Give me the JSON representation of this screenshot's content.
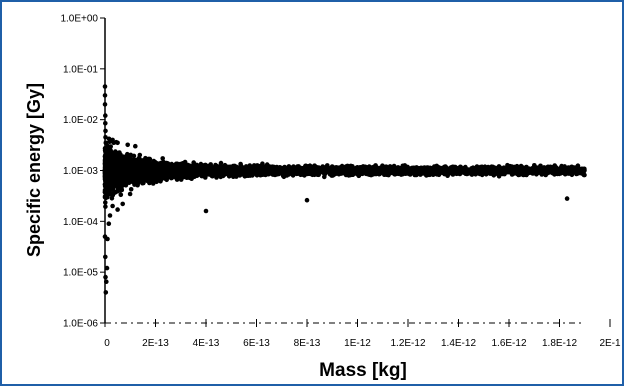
{
  "chart_data": {
    "type": "scatter",
    "title": "",
    "xlabel": "Mass [kg]",
    "ylabel": "Specific energy [Gy]",
    "x_scale": "linear",
    "y_scale": "log",
    "xlim": [
      0,
      2e-12
    ],
    "ylim": [
      1e-06,
      1
    ],
    "x_tick_labels": [
      "0",
      "2E-13",
      "4E-13",
      "6E-13",
      "8E-13",
      "1E-12",
      "1.2E-12",
      "1.4E-12",
      "1.6E-12",
      "1.8E-12",
      "2E-1"
    ],
    "y_tick_labels": [
      "1.0E+00",
      "1.0E-01",
      "1.0E-02",
      "1.0E-03",
      "1.0E-04",
      "1.0E-05",
      "1.0E-06"
    ],
    "grid": false,
    "legend": "none",
    "marker_color": "#000000",
    "points": [
      {
        "x": 0.0,
        "y": 0.045
      },
      {
        "x": 0.0,
        "y": 0.03
      },
      {
        "x": 0.0,
        "y": 0.02
      },
      {
        "x": 1e-15,
        "y": 0.012
      },
      {
        "x": 1e-15,
        "y": 0.0085
      },
      {
        "x": 2e-15,
        "y": 0.006
      },
      {
        "x": 2e-15,
        "y": 0.0045
      },
      {
        "x": 3e-15,
        "y": 0.0035
      },
      {
        "x": 0.0,
        "y": 5e-05
      },
      {
        "x": 1e-15,
        "y": 2e-05
      },
      {
        "x": 2e-15,
        "y": 8e-06
      },
      {
        "x": 3e-15,
        "y": 4e-06
      },
      {
        "x": 5e-15,
        "y": 6.5e-06
      },
      {
        "x": 8e-15,
        "y": 1.2e-05
      },
      {
        "x": 1e-14,
        "y": 4.5e-05
      },
      {
        "x": 1.5e-14,
        "y": 9e-05
      },
      {
        "x": 2e-14,
        "y": 0.00013
      },
      {
        "x": 3e-14,
        "y": 0.0002
      },
      {
        "x": 5e-14,
        "y": 0.00017
      },
      {
        "x": 7e-14,
        "y": 0.00022
      },
      {
        "x": 4e-13,
        "y": 0.00016
      },
      {
        "x": 8e-13,
        "y": 0.00026
      },
      {
        "x": 1.83e-12,
        "y": 0.00028
      },
      {
        "x": 1.6e-14,
        "y": 0.0042
      },
      {
        "x": 3e-14,
        "y": 0.004
      },
      {
        "x": 5e-14,
        "y": 0.0035
      },
      {
        "x": 9e-14,
        "y": 0.0032
      },
      {
        "x": 1.2e-13,
        "y": 0.003
      }
    ]
  }
}
